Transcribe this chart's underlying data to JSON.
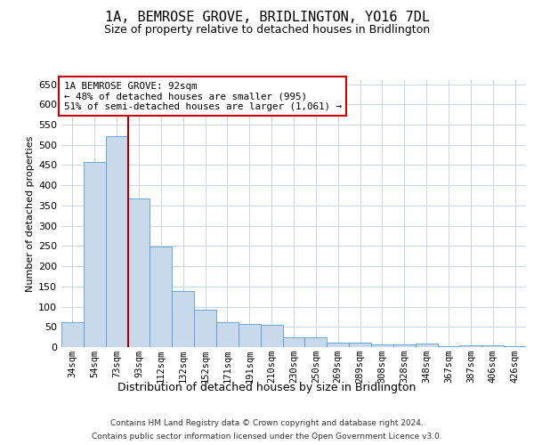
{
  "title": "1A, BEMROSE GROVE, BRIDLINGTON, YO16 7DL",
  "subtitle": "Size of property relative to detached houses in Bridlington",
  "xlabel": "Distribution of detached houses by size in Bridlington",
  "ylabel": "Number of detached properties",
  "footer_line1": "Contains HM Land Registry data © Crown copyright and database right 2024.",
  "footer_line2": "Contains public sector information licensed under the Open Government Licence v3.0.",
  "annotation_title": "1A BEMROSE GROVE: 92sqm",
  "annotation_line1": "← 48% of detached houses are smaller (995)",
  "annotation_line2": "51% of semi-detached houses are larger (1,061) →",
  "bar_color": "#c9d9ec",
  "bar_edge_color": "#5b9bd5",
  "marker_line_color": "#aa0000",
  "annotation_box_edge_color": "#cc0000",
  "background_color": "#ffffff",
  "grid_color": "#c8d4e8",
  "categories": [
    "34sqm",
    "54sqm",
    "73sqm",
    "93sqm",
    "112sqm",
    "132sqm",
    "152sqm",
    "171sqm",
    "191sqm",
    "210sqm",
    "230sqm",
    "250sqm",
    "269sqm",
    "289sqm",
    "308sqm",
    "328sqm",
    "348sqm",
    "367sqm",
    "387sqm",
    "406sqm",
    "426sqm"
  ],
  "values": [
    62,
    457,
    522,
    368,
    248,
    139,
    92,
    62,
    57,
    54,
    25,
    25,
    10,
    12,
    6,
    7,
    8,
    3,
    4,
    4,
    3
  ],
  "marker_bar_index": 3,
  "ylim": [
    0,
    660
  ],
  "yticks": [
    0,
    50,
    100,
    150,
    200,
    250,
    300,
    350,
    400,
    450,
    500,
    550,
    600,
    650
  ]
}
